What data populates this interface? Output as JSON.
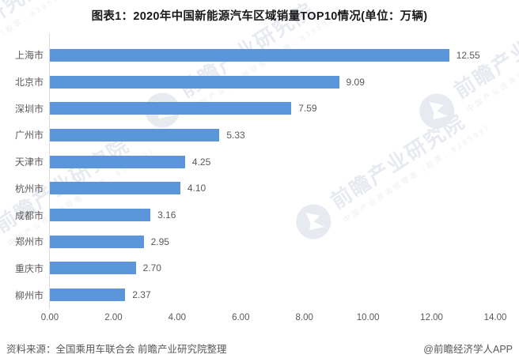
{
  "title": "图表1：2020年中国新能源汽车区域销量TOP10情况(单位：万辆)",
  "chart_data": {
    "type": "bar",
    "orientation": "horizontal",
    "title": "图表1：2020年中国新能源汽车区域销量TOP10情况(单位：万辆)",
    "categories": [
      "上海市",
      "北京市",
      "深圳市",
      "广州市",
      "天津市",
      "杭州市",
      "成都市",
      "郑州市",
      "重庆市",
      "柳州市"
    ],
    "values": [
      12.55,
      9.09,
      7.59,
      5.33,
      4.25,
      4.1,
      3.16,
      2.95,
      2.7,
      2.37
    ],
    "value_labels": [
      "12.55",
      "9.09",
      "7.59",
      "5.33",
      "4.25",
      "4.10",
      "3.16",
      "2.95",
      "2.70",
      "2.37"
    ],
    "xlabel": "",
    "ylabel": "",
    "xlim": [
      0,
      14
    ],
    "x_ticks": [
      "0.00",
      "2.00",
      "4.00",
      "6.00",
      "8.00",
      "10.00",
      "12.00",
      "14.00"
    ],
    "grid": false,
    "legend": null,
    "bar_color": "#5b95da",
    "unit": "万辆"
  },
  "watermark": {
    "text": "前瞻产业研究院",
    "subtext": "中国产业咨询领导者（股票：839599）",
    "logo": "qianzhan-logo"
  },
  "footer": {
    "source": "资料来源：全国乘用车联合会 前瞻产业研究院整理",
    "credit": "@前瞻经济学人APP"
  },
  "colors": {
    "bar": "#5b95da",
    "label": "#595959",
    "title": "#1a1a1a",
    "axis": "#dcdcdc",
    "watermark": "#e7eaf1"
  }
}
